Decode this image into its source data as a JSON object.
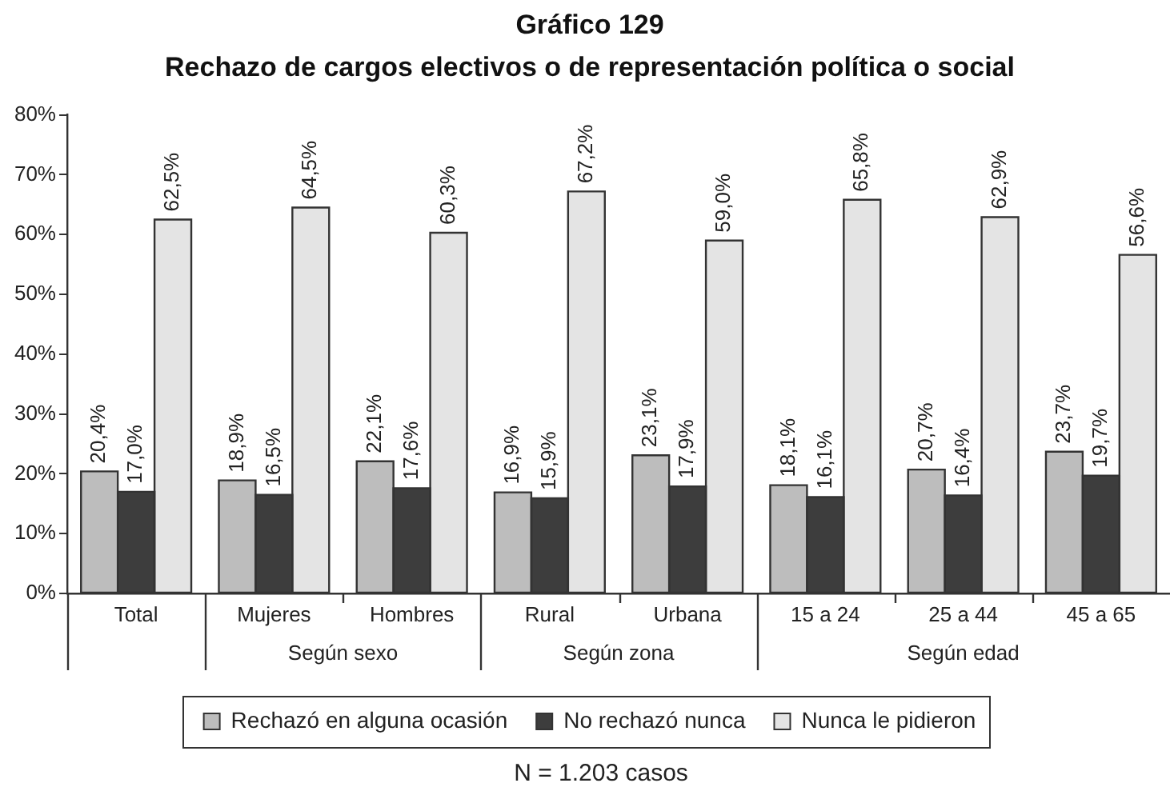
{
  "chart_data": {
    "type": "bar",
    "title": "Gráfico 129",
    "subtitle": "Rechazo de cargos electivos o de representación política o social",
    "categories": [
      "Total",
      "Mujeres",
      "Hombres",
      "Rural",
      "Urbana",
      "15 a 24",
      "25 a 44",
      "45 a 65"
    ],
    "series": [
      {
        "name": "Rechazó en alguna ocasión",
        "color": "#bdbdbd",
        "values": [
          20.4,
          18.9,
          22.1,
          16.9,
          23.1,
          18.1,
          20.7,
          23.7
        ],
        "value_labels": [
          "20,4%",
          "18,9%",
          "22,1%",
          "16,9%",
          "23,1%",
          "18,1%",
          "20,7%",
          "23,7%"
        ]
      },
      {
        "name": "No rechazó nunca",
        "color": "#3d3d3d",
        "values": [
          17.0,
          16.5,
          17.6,
          15.9,
          17.9,
          16.1,
          16.4,
          19.7
        ],
        "value_labels": [
          "17,0%",
          "16,5%",
          "17,6%",
          "15,9%",
          "17,9%",
          "16,1%",
          "16,4%",
          "19,7%"
        ]
      },
      {
        "name": "Nunca le pidieron",
        "color": "#e4e4e4",
        "values": [
          62.5,
          64.5,
          60.3,
          67.2,
          59.0,
          65.8,
          62.9,
          56.6
        ],
        "value_labels": [
          "62,5%",
          "64,5%",
          "60,3%",
          "67,2%",
          "59,0%",
          "65,8%",
          "62,9%",
          "56,6%"
        ]
      }
    ],
    "ylim": [
      0,
      80
    ],
    "yticks": [
      {
        "value": 0,
        "label": "0%"
      },
      {
        "value": 10,
        "label": "10%"
      },
      {
        "value": 20,
        "label": "20%"
      },
      {
        "value": 30,
        "label": "30%"
      },
      {
        "value": 40,
        "label": "40%"
      },
      {
        "value": 50,
        "label": "50%"
      },
      {
        "value": 60,
        "label": "60%"
      },
      {
        "value": 70,
        "label": "70%"
      },
      {
        "value": 80,
        "label": "80%"
      }
    ],
    "grid": false,
    "legend": "bottom",
    "annotations": [
      "Según sexo",
      "Según zona",
      "Según edad",
      "N = 1.203 casos"
    ]
  }
}
